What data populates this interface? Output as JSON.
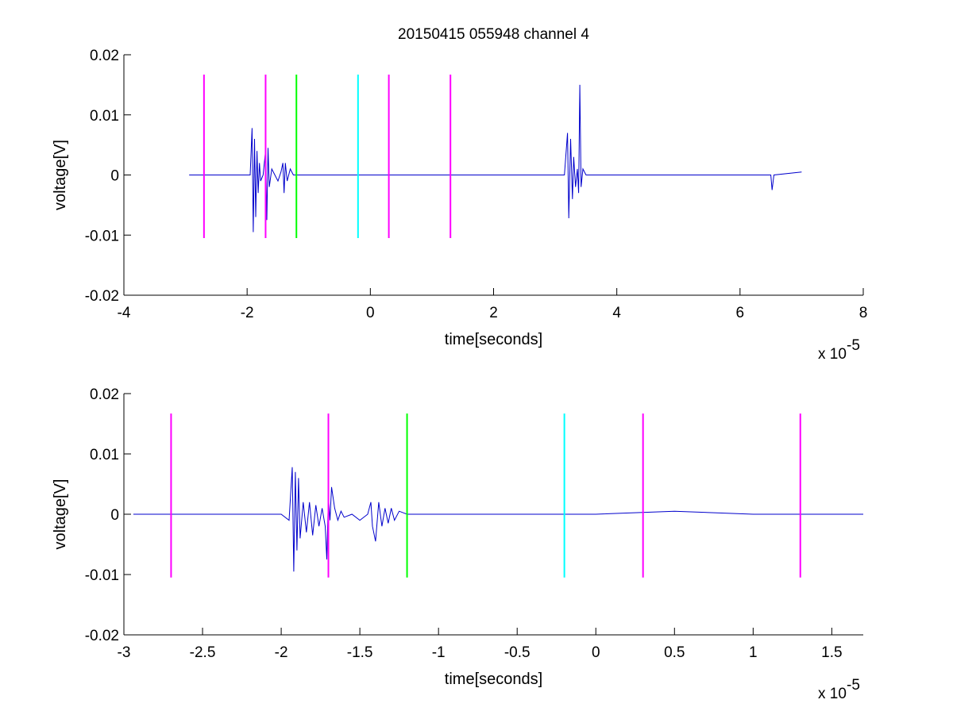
{
  "chart_data": [
    {
      "type": "line",
      "title": "20150415 055948 channel 4",
      "xlabel": "time[seconds]",
      "ylabel": "voltage[V]",
      "x_exponent_label": "x 10",
      "x_exponent": "-5",
      "xlim": [
        -4,
        8
      ],
      "ylim": [
        -0.02,
        0.02
      ],
      "xticks": [
        "-4",
        "-2",
        "0",
        "2",
        "4",
        "6",
        "8"
      ],
      "yticks": [
        "-0.02",
        "-0.01",
        "0",
        "0.01",
        "0.02"
      ],
      "grid": false,
      "series": [
        {
          "color": "#0000cc",
          "x": [
            -2.94,
            -1.95,
            -1.92,
            -1.9,
            -1.88,
            -1.86,
            -1.84,
            -1.82,
            -1.8,
            -1.78,
            -1.74,
            -1.7,
            -1.68,
            -1.66,
            -1.64,
            -1.6,
            -1.55,
            -1.5,
            -1.45,
            -1.42,
            -1.4,
            -1.38,
            -1.35,
            -1.3,
            -1.25,
            -1.2,
            0.0,
            1.0,
            2.0,
            3.0,
            3.15,
            3.2,
            3.22,
            3.25,
            3.28,
            3.3,
            3.33,
            3.36,
            3.38,
            3.4,
            3.42,
            3.45,
            3.5,
            4.0,
            5.0,
            6.0,
            6.5,
            6.52,
            6.55,
            7.0
          ],
          "y": [
            0.0,
            0.0,
            0.0078,
            -0.0095,
            0.006,
            -0.007,
            0.004,
            -0.003,
            0.002,
            -0.001,
            0.0,
            0.004,
            -0.0075,
            0.0045,
            -0.002,
            0.001,
            0.0,
            -0.001,
            0.0005,
            0.002,
            -0.003,
            0.002,
            -0.001,
            0.001,
            0.0,
            0.0,
            0.0,
            0.0,
            0.0,
            0.0,
            0.0,
            0.007,
            -0.0072,
            0.006,
            -0.004,
            0.003,
            -0.002,
            0.001,
            -0.003,
            0.015,
            -0.002,
            0.001,
            0.0,
            0.0,
            0.0,
            0.0,
            0.0,
            -0.0025,
            0.0,
            0.0005
          ]
        }
      ],
      "markers": [
        {
          "x": -2.7,
          "color": "#ff00ff"
        },
        {
          "x": -1.7,
          "color": "#ff00ff"
        },
        {
          "x": -1.2,
          "color": "#00ff00"
        },
        {
          "x": -0.2,
          "color": "#00ffff"
        },
        {
          "x": 0.3,
          "color": "#ff00ff"
        },
        {
          "x": 1.3,
          "color": "#ff00ff"
        }
      ],
      "marker_ylim": [
        -0.0105,
        0.0167
      ]
    },
    {
      "type": "line",
      "title": "",
      "xlabel": "time[seconds]",
      "ylabel": "voltage[V]",
      "x_exponent_label": "x 10",
      "x_exponent": "-5",
      "xlim": [
        -3.0,
        1.7
      ],
      "ylim": [
        -0.02,
        0.02
      ],
      "xticks": [
        "-3",
        "-2.5",
        "-2",
        "-1.5",
        "-1",
        "-0.5",
        "0",
        "0.5",
        "1",
        "1.5"
      ],
      "yticks": [
        "-0.02",
        "-0.01",
        "0",
        "0.01",
        "0.02"
      ],
      "grid": false,
      "series": [
        {
          "color": "#0000cc",
          "x": [
            -2.94,
            -2.0,
            -1.95,
            -1.93,
            -1.92,
            -1.91,
            -1.9,
            -1.89,
            -1.88,
            -1.86,
            -1.84,
            -1.82,
            -1.8,
            -1.78,
            -1.76,
            -1.74,
            -1.72,
            -1.71,
            -1.7,
            -1.69,
            -1.68,
            -1.66,
            -1.64,
            -1.62,
            -1.6,
            -1.55,
            -1.5,
            -1.45,
            -1.43,
            -1.42,
            -1.4,
            -1.38,
            -1.36,
            -1.34,
            -1.32,
            -1.3,
            -1.28,
            -1.25,
            -1.2,
            -1.0,
            -0.5,
            0.0,
            0.5,
            1.0,
            1.5,
            1.7
          ],
          "y": [
            0.0,
            0.0,
            -0.001,
            0.0078,
            -0.0095,
            0.007,
            -0.006,
            0.006,
            -0.004,
            0.002,
            -0.003,
            0.002,
            -0.0035,
            0.0015,
            -0.002,
            0.001,
            -0.002,
            -0.0075,
            0.003,
            -0.001,
            0.0045,
            0.001,
            -0.001,
            0.0005,
            -0.0005,
            0.0,
            -0.001,
            0.0,
            0.002,
            -0.002,
            -0.0045,
            0.002,
            -0.002,
            0.001,
            -0.0015,
            0.001,
            -0.001,
            0.0005,
            0.0,
            0.0,
            0.0,
            0.0,
            0.0005,
            0.0,
            0.0,
            0.0
          ]
        }
      ],
      "markers": [
        {
          "x": -2.7,
          "color": "#ff00ff"
        },
        {
          "x": -1.7,
          "color": "#ff00ff"
        },
        {
          "x": -1.2,
          "color": "#00ff00"
        },
        {
          "x": -0.2,
          "color": "#00ffff"
        },
        {
          "x": 0.3,
          "color": "#ff00ff"
        },
        {
          "x": 1.3,
          "color": "#ff00ff"
        }
      ],
      "marker_ylim": [
        -0.0105,
        0.0167
      ]
    }
  ]
}
